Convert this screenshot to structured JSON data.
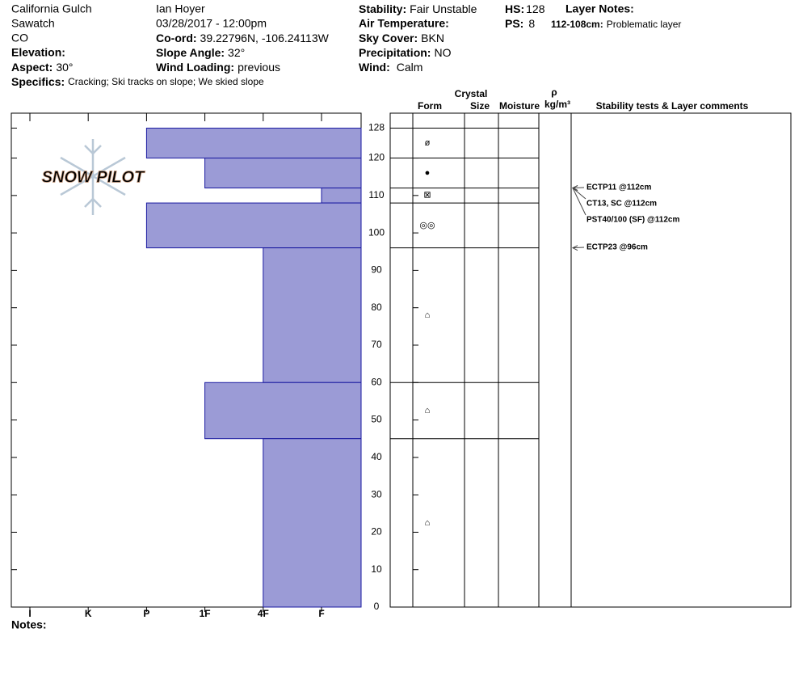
{
  "header": {
    "location": "California Gulch",
    "range": "Sawatch",
    "state": "CO",
    "elevation": {
      "label": "Elevation:"
    },
    "aspect": {
      "label": "Aspect:",
      "value": "30°"
    },
    "specifics": {
      "label": "Specifics:",
      "value": "Cracking;  Ski tracks on slope;  We skied slope"
    },
    "observer": "Ian Hoyer",
    "datetime": "03/28/2017 - 12:00pm",
    "coord": {
      "label": "Co-ord:",
      "value": "39.22796N, -106.24113W"
    },
    "slope_angle": {
      "label": "Slope Angle:",
      "value": "32°"
    },
    "wind_loading": {
      "label": "Wind Loading:",
      "value": "previous"
    },
    "stability": {
      "label": "Stability:",
      "value": "Fair Unstable"
    },
    "air_temperature": {
      "label": "Air Temperature:"
    },
    "sky_cover": {
      "label": "Sky Cover:",
      "value": "BKN"
    },
    "precipitation": {
      "label": "Precipitation:",
      "value": "NO"
    },
    "wind": {
      "label": "Wind:",
      "value": "Calm"
    },
    "hs": {
      "label": "HS:",
      "value": "128"
    },
    "ps": {
      "label": "PS:",
      "value": "8"
    },
    "layer_notes": {
      "label": "Layer Notes:",
      "range": "112-108cm:",
      "note": "Problematic layer"
    },
    "notes": {
      "label": "Notes:"
    },
    "logo": "SNOW PILOT"
  },
  "chart_data": {
    "type": "snow-profile",
    "hardness_categories": [
      "I",
      "K",
      "P",
      "1F",
      "4F",
      "F"
    ],
    "ylim": [
      0,
      132
    ],
    "yticks": [
      0,
      10,
      20,
      30,
      40,
      50,
      60,
      70,
      80,
      90,
      100,
      110,
      120,
      128
    ],
    "color": "#9b9bd6",
    "layers": [
      {
        "top": 128,
        "bottom": 120,
        "hardness": "P",
        "form": "ø"
      },
      {
        "top": 120,
        "bottom": 112,
        "hardness": "1F",
        "form": "●"
      },
      {
        "top": 112,
        "bottom": 108,
        "hardness": "F",
        "form": "⊠"
      },
      {
        "top": 108,
        "bottom": 96,
        "hardness": "P",
        "form": "◎◎"
      },
      {
        "top": 96,
        "bottom": 60,
        "hardness": "4F",
        "form": "⌂"
      },
      {
        "top": 60,
        "bottom": 45,
        "hardness": "1F",
        "form": "⌂"
      },
      {
        "top": 45,
        "bottom": 0,
        "hardness": "4F",
        "form": "⌂"
      }
    ],
    "columns": {
      "crystal": "Crystal",
      "form": "Form",
      "size": "Size",
      "moisture": "Moisture",
      "density": "ρ",
      "density_unit": "kg/m³",
      "comments": "Stability tests & Layer comments"
    },
    "tests": [
      {
        "text": "ECTP11 @112cm",
        "depth": 112
      },
      {
        "text": "CT13, SC @112cm",
        "depth": 112
      },
      {
        "text": "PST40/100 (SF) @112cm",
        "depth": 112
      },
      {
        "text": "ECTP23 @96cm",
        "depth": 96
      }
    ]
  }
}
